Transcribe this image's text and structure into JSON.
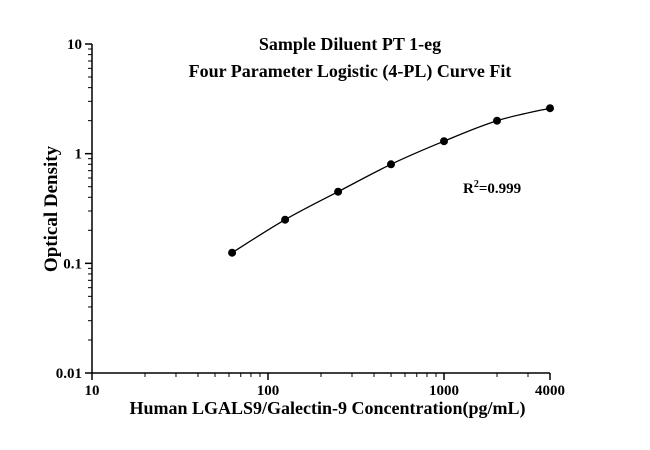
{
  "chart": {
    "title_line1": "Sample Diluent PT 1-eg",
    "title_line2": "Four Parameter Logistic (4-PL) Curve Fit",
    "ylabel": "Optical Density",
    "xlabel": "Human LGALS9/Galectin-9 Concentration(pg/mL)",
    "annotation": {
      "base": "R",
      "sup": "2",
      "rest": "=0.999"
    }
  },
  "chart_data": {
    "type": "scatter",
    "title": "Sample Diluent PT 1-eg Four Parameter Logistic (4-PL) Curve Fit",
    "xlabel": "Human LGALS9/Galectin-9 Concentration(pg/mL)",
    "ylabel": "Optical Density",
    "x_scale": "log",
    "y_scale": "log",
    "xlim": [
      10,
      4000
    ],
    "ylim": [
      0.01,
      10
    ],
    "x_major_ticks": [
      10,
      100,
      1000,
      4000
    ],
    "x_major_tick_labels": [
      "10",
      "100",
      "1000",
      "4000"
    ],
    "y_major_ticks": [
      0.01,
      0.1,
      1,
      10
    ],
    "y_major_tick_labels": [
      "0.01",
      "0.1",
      "1",
      "10"
    ],
    "x": [
      62.5,
      125,
      250,
      500,
      1000,
      2000,
      4000
    ],
    "y": [
      0.125,
      0.25,
      0.45,
      0.8,
      1.3,
      2.0,
      2.6
    ],
    "fit": "4-PL",
    "r_squared": 0.999,
    "annotation": "R²=0.999",
    "marker": "circle",
    "marker_color": "#000000",
    "line_color": "#000000",
    "grid": false,
    "legend": false
  }
}
